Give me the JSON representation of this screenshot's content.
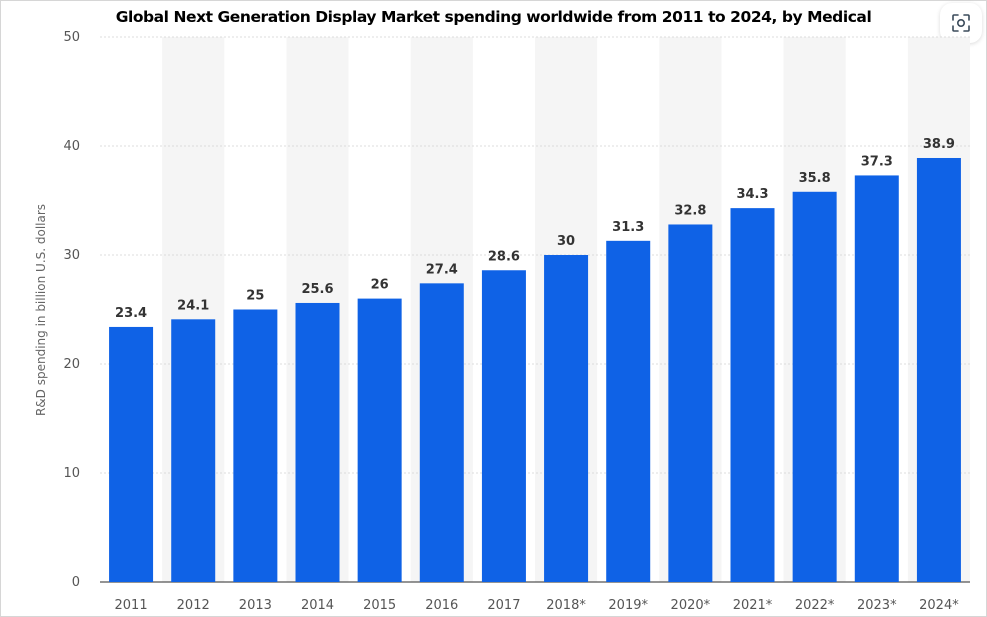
{
  "chart_data": {
    "type": "bar",
    "title": "Global Next Generation Display Market spending worldwide from 2011 to 2024, by Medical",
    "ylabel": "R&D spending in billion U.S. dollars",
    "xlabel": "",
    "categories": [
      "2011",
      "2012",
      "2013",
      "2014",
      "2015",
      "2016",
      "2017",
      "2018*",
      "2019*",
      "2020*",
      "2021*",
      "2022*",
      "2023*",
      "2024*"
    ],
    "values": [
      23.4,
      24.1,
      25,
      25.6,
      26,
      27.4,
      28.6,
      30,
      31.3,
      32.8,
      34.3,
      35.8,
      37.3,
      38.9
    ],
    "value_labels": [
      "23.4",
      "24.1",
      "25",
      "25.6",
      "26",
      "27.4",
      "28.6",
      "30",
      "31.3",
      "32.8",
      "34.3",
      "35.8",
      "37.3",
      "38.9"
    ],
    "ylim": [
      0,
      50
    ],
    "yticks": [
      "0",
      "10",
      "20",
      "30",
      "40",
      "50"
    ],
    "grid": true,
    "legend": "none",
    "bar_color": "#0f62e6",
    "band_color": "#f5f5f5"
  },
  "toolbar": {
    "expand_icon": "focus-expand-icon"
  }
}
